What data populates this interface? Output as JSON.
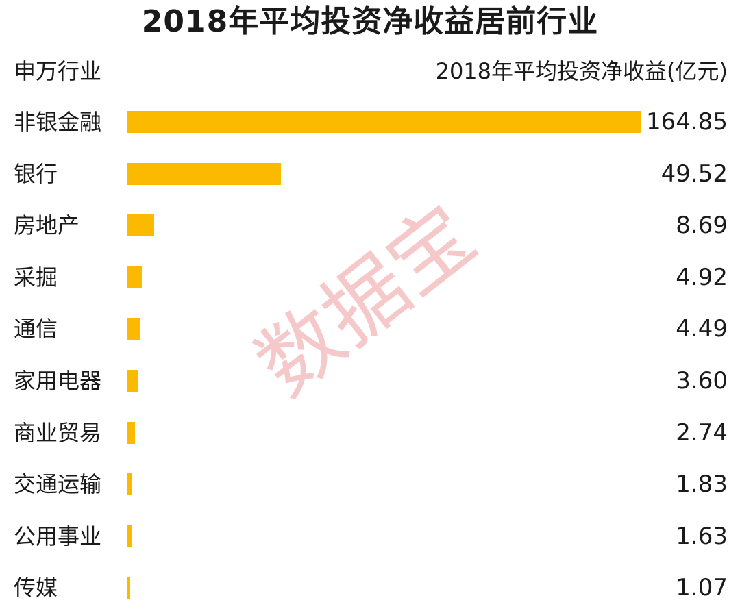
{
  "watermark": "数据宝",
  "colors": {
    "bar": "#fbba00",
    "text": "#1a1a1a",
    "watermark": "#f2b8b8"
  },
  "chart_data": {
    "type": "bar",
    "orientation": "horizontal",
    "title": "2018年平均投资净收益居前行业",
    "category_header": "申万行业",
    "value_header": "2018年平均投资净收益(亿元)",
    "categories": [
      "非银金融",
      "银行",
      "房地产",
      "采掘",
      "通信",
      "家用电器",
      "商业贸易",
      "交通运输",
      "公用事业",
      "传媒"
    ],
    "values": [
      164.85,
      49.52,
      8.69,
      4.92,
      4.49,
      3.6,
      2.74,
      1.83,
      1.63,
      1.07
    ],
    "value_labels": [
      "164.85",
      "49.52",
      "8.69",
      "4.92",
      "4.49",
      "3.60",
      "2.74",
      "1.83",
      "1.63",
      "1.07"
    ],
    "xlim": [
      0,
      164.85
    ],
    "grid": false,
    "legend": "none"
  }
}
